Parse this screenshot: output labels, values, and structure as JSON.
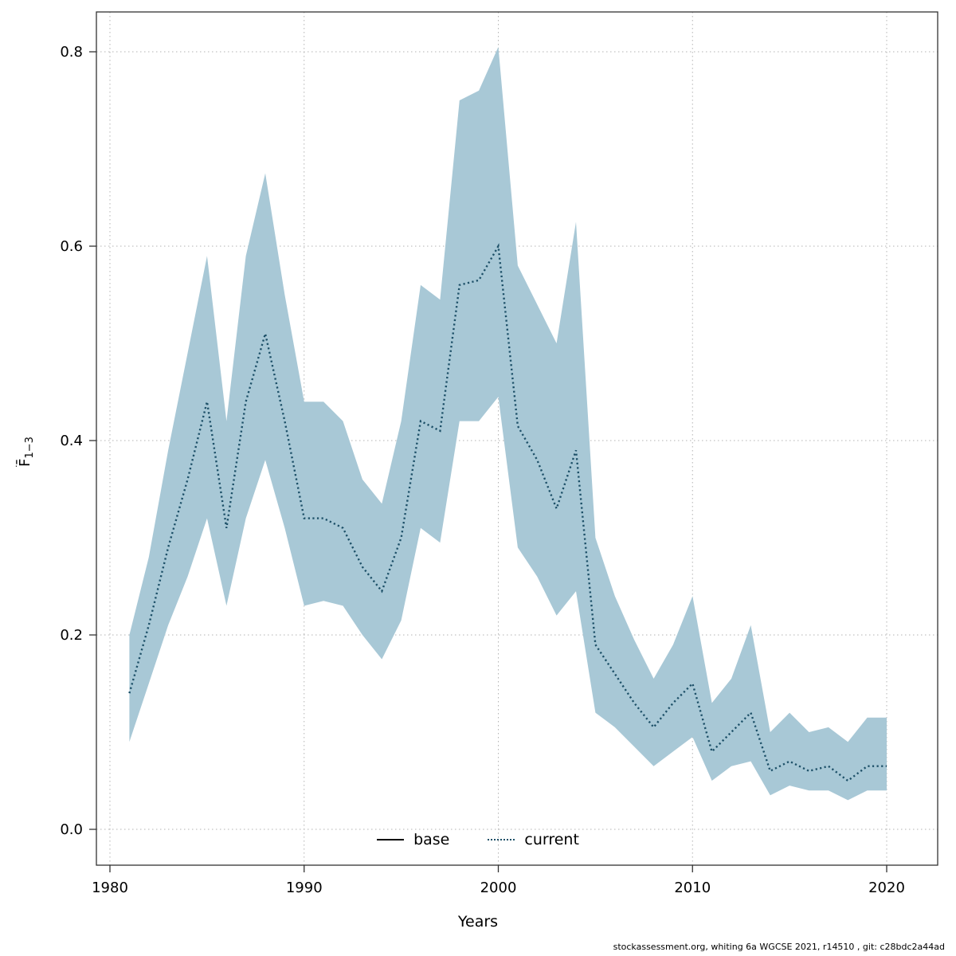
{
  "chart_data": {
    "type": "line",
    "title": "",
    "xlabel": "Years",
    "ylabel": "F̄₁₋₃",
    "xlim": [
      1979.2,
      2022.7
    ],
    "ylim": [
      -0.035,
      0.82
    ],
    "xticks": [
      1980,
      1990,
      2000,
      2010,
      2020
    ],
    "yticks": [
      0.0,
      0.2,
      0.4,
      0.6,
      0.8
    ],
    "grid": true,
    "legend_position": "bottom-center",
    "x": [
      1981,
      1982,
      1983,
      1984,
      1985,
      1986,
      1987,
      1988,
      1989,
      1990,
      1991,
      1992,
      1993,
      1994,
      1995,
      1996,
      1997,
      1998,
      1999,
      2000,
      2001,
      2002,
      2003,
      2004,
      2005,
      2006,
      2007,
      2008,
      2009,
      2010,
      2011,
      2012,
      2013,
      2014,
      2015,
      2016,
      2017,
      2018,
      2019,
      2020
    ],
    "series": [
      {
        "name": "current",
        "style": "dotted",
        "values": [
          0.14,
          0.21,
          0.29,
          0.36,
          0.44,
          0.31,
          0.44,
          0.51,
          0.42,
          0.32,
          0.32,
          0.31,
          0.27,
          0.245,
          0.3,
          0.42,
          0.41,
          0.56,
          0.565,
          0.6,
          0.415,
          0.38,
          0.33,
          0.39,
          0.19,
          0.16,
          0.13,
          0.105,
          0.13,
          0.15,
          0.08,
          0.1,
          0.12,
          0.06,
          0.07,
          0.06,
          0.065,
          0.05,
          0.065,
          0.065
        ]
      }
    ],
    "band": {
      "name": "current confidence interval",
      "lower": [
        0.09,
        0.15,
        0.21,
        0.26,
        0.32,
        0.23,
        0.32,
        0.38,
        0.31,
        0.23,
        0.235,
        0.23,
        0.2,
        0.175,
        0.215,
        0.31,
        0.295,
        0.42,
        0.42,
        0.445,
        0.29,
        0.26,
        0.22,
        0.245,
        0.12,
        0.105,
        0.085,
        0.065,
        0.08,
        0.095,
        0.05,
        0.065,
        0.07,
        0.035,
        0.045,
        0.04,
        0.04,
        0.03,
        0.04,
        0.04
      ],
      "upper": [
        0.2,
        0.28,
        0.39,
        0.49,
        0.59,
        0.42,
        0.59,
        0.675,
        0.55,
        0.44,
        0.44,
        0.42,
        0.36,
        0.335,
        0.42,
        0.56,
        0.545,
        0.75,
        0.76,
        0.805,
        0.58,
        0.54,
        0.5,
        0.625,
        0.3,
        0.24,
        0.195,
        0.155,
        0.19,
        0.24,
        0.13,
        0.155,
        0.21,
        0.1,
        0.12,
        0.1,
        0.105,
        0.09,
        0.115,
        0.115
      ]
    },
    "legend": [
      {
        "label": "base",
        "style": "solid",
        "color": "#000000"
      },
      {
        "label": "current",
        "style": "dotted",
        "color": "#1d5068"
      }
    ],
    "colors": {
      "band": "#a8c8d6",
      "current_line": "#1d5068",
      "base_line": "#000000"
    }
  },
  "axes": {
    "xlabel": "Years",
    "ylabel_main": "F̄",
    "ylabel_sub": "1−3"
  },
  "footer": {
    "text": "stockassessment.org, whiting 6a WGCSE 2021, r14510 , git: c28bdc2a44ad"
  }
}
